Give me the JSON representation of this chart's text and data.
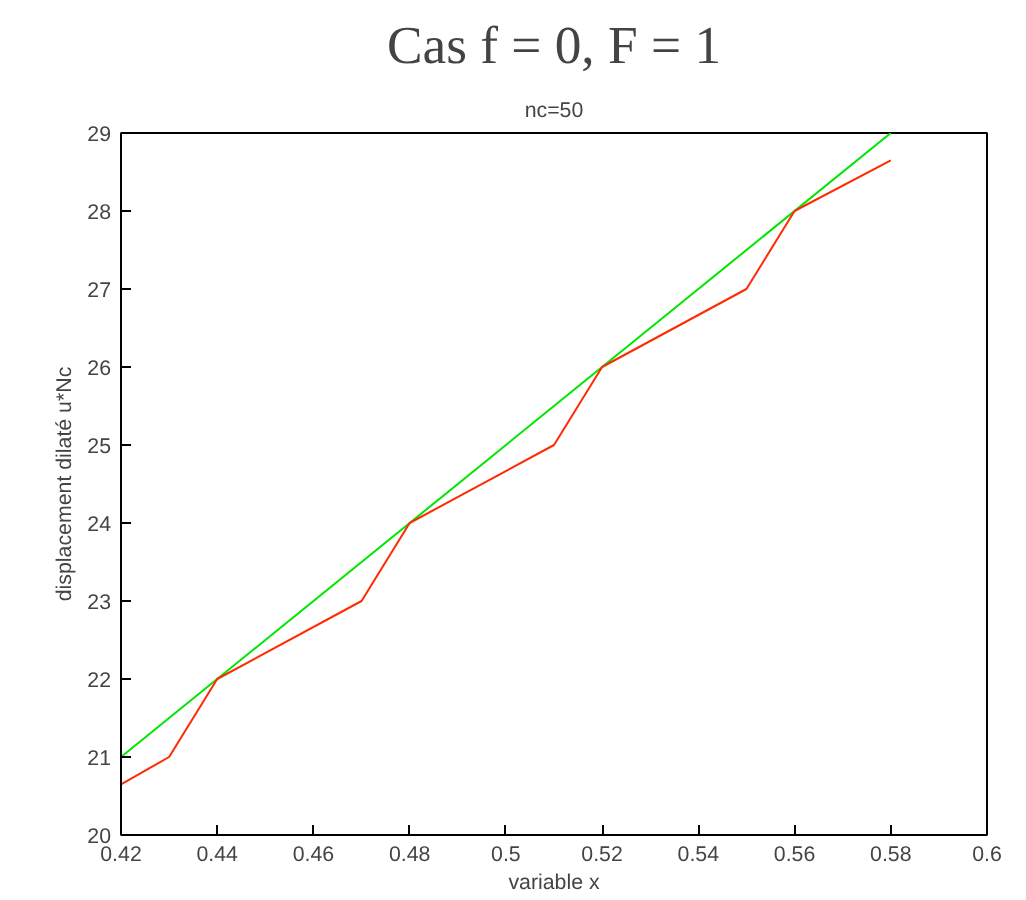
{
  "chart_data": {
    "type": "line",
    "title": "Cas f = 0, F = 1",
    "subtitle": "nc=50",
    "xlabel": "variable x",
    "ylabel": "displacement dilaté u*Nc",
    "series": [
      {
        "color": "#00e600",
        "x": [
          0.42,
          0.58
        ],
        "values": [
          21,
          29
        ]
      },
      {
        "color": "#ff2a00",
        "x": [
          0.42,
          0.43,
          0.44,
          0.47,
          0.48,
          0.51,
          0.52,
          0.55,
          0.56,
          0.58
        ],
        "values": [
          20.65,
          21,
          22,
          23,
          24,
          25,
          26,
          27,
          28,
          28.65
        ]
      }
    ],
    "xlim": [
      0.42,
      0.6
    ],
    "ylim": [
      20,
      29
    ],
    "xticks": [
      0.42,
      0.44,
      0.46,
      0.48,
      0.5,
      0.52,
      0.54,
      0.56,
      0.58,
      0.6
    ],
    "yticks": [
      20,
      21,
      22,
      23,
      24,
      25,
      26,
      27,
      28,
      29
    ],
    "marker": "none",
    "line_style": "solid"
  }
}
